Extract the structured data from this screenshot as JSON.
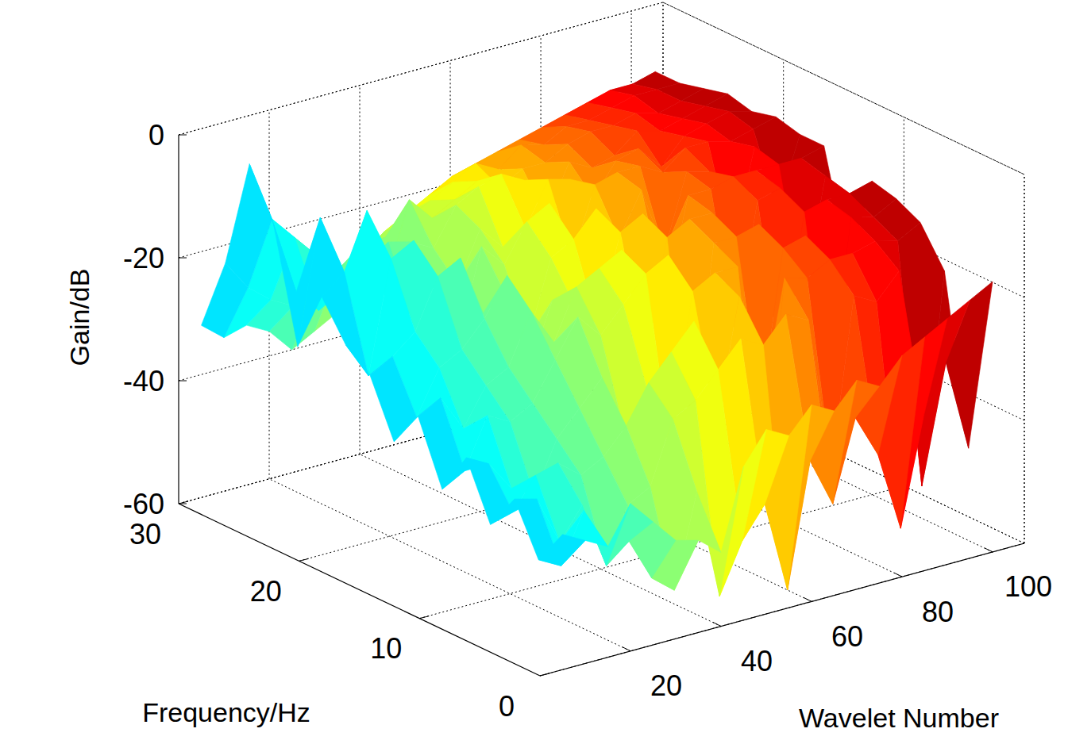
{
  "chart_data": {
    "type": "surface",
    "x_label": "Wavelet Number",
    "y_label": "Frequency/Hz",
    "z_label": "Gain/dB",
    "x": [
      5,
      10,
      15,
      20,
      25,
      30,
      35,
      40,
      45,
      50,
      55,
      60,
      65,
      70,
      75,
      80,
      85,
      90,
      95,
      100
    ],
    "y": [
      0,
      2,
      4,
      6,
      8,
      10,
      12,
      14,
      16,
      18,
      20,
      22,
      24,
      26,
      28,
      30
    ],
    "z": [
      [
        -38,
        -44,
        -36,
        -42,
        -33,
        -40,
        -30,
        -36,
        -27,
        -24,
        -18,
        -28,
        -10,
        -2,
        -20,
        -32
      ],
      [
        -40,
        -46,
        -37,
        -41,
        -35,
        -38,
        -28,
        -33,
        -25,
        -30,
        -15,
        -8,
        -22,
        -12,
        -25,
        -35
      ],
      [
        -42,
        -38,
        -45,
        -36,
        -40,
        -30,
        -34,
        -26,
        -22,
        -12,
        -6,
        -20,
        -26,
        -16,
        -28,
        -34
      ],
      [
        -36,
        -48,
        -40,
        -35,
        -42,
        -32,
        -28,
        -24,
        -14,
        -10,
        -22,
        -18,
        -24,
        -20,
        -30,
        -36
      ],
      [
        -40,
        -45,
        -50,
        -38,
        -34,
        -30,
        -26,
        -20,
        -12,
        -18,
        -25,
        -15,
        -22,
        -24,
        -28,
        -40
      ],
      [
        -44,
        -52,
        -42,
        -36,
        -30,
        -24,
        -18,
        -14,
        -22,
        -28,
        -20,
        -16,
        -24,
        -20,
        -26,
        -38
      ],
      [
        -45,
        -55,
        -40,
        -32,
        -26,
        -18,
        -24,
        -30,
        -20,
        -14,
        -22,
        -18,
        -12,
        -20,
        -25,
        -36
      ],
      [
        -48,
        -40,
        -30,
        -26,
        -36,
        -22,
        -16,
        -20,
        -28,
        -18,
        -14,
        -12,
        -16,
        -18,
        -22,
        -34
      ],
      [
        -35,
        -58,
        -28,
        -22,
        -30,
        -18,
        -14,
        -22,
        -16,
        -12,
        -18,
        -10,
        -14,
        -16,
        -20,
        -30
      ],
      [
        -30,
        -50,
        -24,
        -18,
        -40,
        -14,
        -12,
        -26,
        -14,
        -10,
        -16,
        -9,
        -12,
        -14,
        -18,
        -28
      ],
      [
        -32,
        -45,
        -20,
        -35,
        -16,
        -12,
        -30,
        -12,
        -10,
        -20,
        -9,
        -11,
        -14,
        -12,
        -16,
        -26
      ],
      [
        -28,
        -60,
        -22,
        -16,
        -14,
        -42,
        -12,
        -10,
        -16,
        -9,
        -10,
        -18,
        -12,
        -14,
        -15,
        -24
      ],
      [
        -30,
        -40,
        -18,
        -50,
        -14,
        -12,
        -10,
        -25,
        -9,
        -8,
        -14,
        -10,
        -12,
        -11,
        -14,
        -22
      ],
      [
        -26,
        -48,
        -20,
        -15,
        -38,
        -12,
        -10,
        -9,
        -20,
        -8,
        -9,
        -12,
        -10,
        -12,
        -13,
        -20
      ],
      [
        -28,
        -35,
        -45,
        -16,
        -13,
        -11,
        -30,
        -9,
        -8,
        -10,
        -8,
        -11,
        -9,
        -10,
        -12,
        -18
      ],
      [
        -24,
        -42,
        -18,
        -14,
        -12,
        -35,
        -10,
        -8,
        -9,
        -7,
        -12,
        -8,
        -9,
        -10,
        -11,
        -16
      ],
      [
        -22,
        -55,
        -20,
        -14,
        -40,
        -11,
        -9,
        -8,
        -22,
        -7,
        -8,
        -9,
        -8,
        -9,
        -10,
        -15
      ],
      [
        -20,
        -38,
        -16,
        -13,
        -11,
        -10,
        -28,
        -8,
        -7,
        -8,
        -7,
        -8,
        -9,
        -8,
        -9,
        -14
      ],
      [
        -18,
        -30,
        -52,
        -14,
        -12,
        -10,
        -9,
        -8,
        -18,
        -7,
        -6,
        -7,
        -8,
        -8,
        -9,
        -13
      ],
      [
        -16,
        -45,
        -18,
        -12,
        -10,
        -9,
        -24,
        -7,
        -7,
        -6,
        -7,
        -6,
        -7,
        -8,
        -8,
        -12
      ]
    ],
    "xlim": [
      0,
      107
    ],
    "xticks": [
      20,
      40,
      60,
      80,
      100
    ],
    "ylim": [
      0,
      30
    ],
    "yticks": [
      0,
      10,
      20,
      30
    ],
    "zlim": [
      -60,
      0
    ],
    "zticks": [
      -60,
      -40,
      -20,
      0
    ],
    "grid": true
  }
}
